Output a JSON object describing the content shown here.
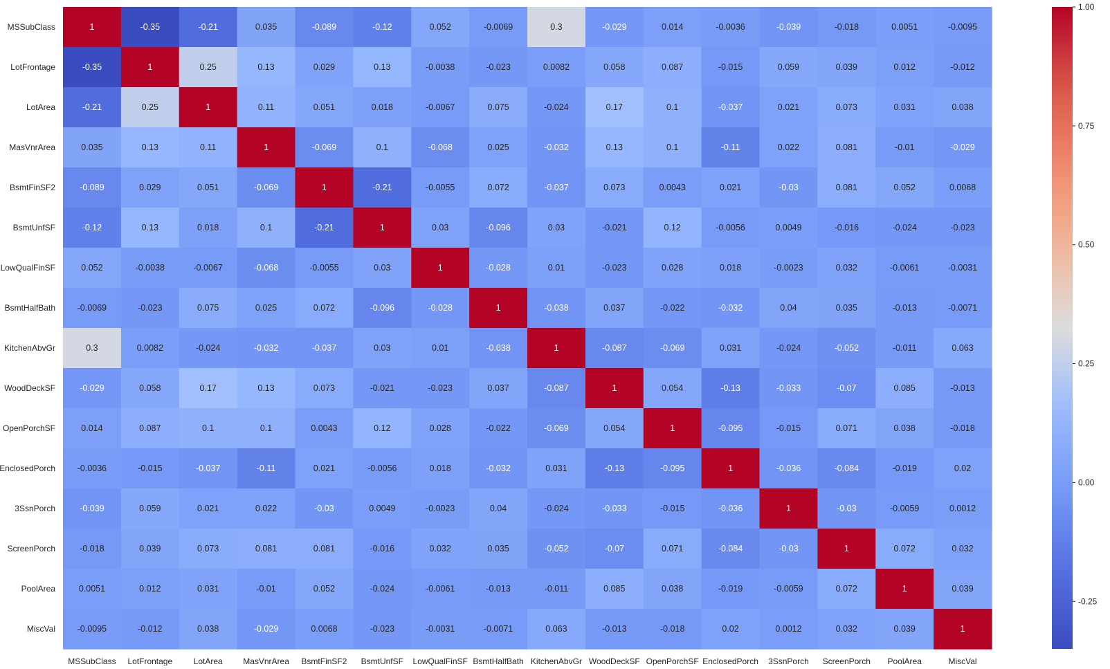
{
  "chart_data": {
    "type": "heatmap",
    "title": "",
    "xlabel": "",
    "ylabel": "",
    "colormap": "coolwarm",
    "annotated": true,
    "vmin": -0.35,
    "vmax": 1.0,
    "grid": false,
    "colorbar": {
      "placement": "right",
      "ticks": [
        -0.25,
        0.0,
        0.25,
        0.5,
        0.75,
        1.0
      ],
      "tick_labels": [
        "-0.25",
        "0.00",
        "0.25",
        "0.50",
        "0.75",
        "1.00"
      ]
    },
    "labels": [
      "MSSubClass",
      "LotFrontage",
      "LotArea",
      "MasVnrArea",
      "BsmtFinSF2",
      "BsmtUnfSF",
      "LowQualFinSF",
      "BsmtHalfBath",
      "KitchenAbvGr",
      "WoodDeckSF",
      "OpenPorchSF",
      "EnclosedPorch",
      "3SsnPorch",
      "ScreenPorch",
      "PoolArea",
      "MiscVal"
    ],
    "annotations": [
      [
        "1",
        "-0.35",
        "-0.21",
        "0.035",
        "-0.089",
        "-0.12",
        "0.052",
        "-0.0069",
        "0.3",
        "-0.029",
        "0.014",
        "-0.0036",
        "-0.039",
        "-0.018",
        "0.0051",
        "-0.0095"
      ],
      [
        "-0.35",
        "1",
        "0.25",
        "0.13",
        "0.029",
        "0.13",
        "-0.0038",
        "-0.023",
        "0.0082",
        "0.058",
        "0.087",
        "-0.015",
        "0.059",
        "0.039",
        "0.012",
        "-0.012"
      ],
      [
        "-0.21",
        "0.25",
        "1",
        "0.11",
        "0.051",
        "0.018",
        "-0.0067",
        "0.075",
        "-0.024",
        "0.17",
        "0.1",
        "-0.037",
        "0.021",
        "0.073",
        "0.031",
        "0.038"
      ],
      [
        "0.035",
        "0.13",
        "0.11",
        "1",
        "-0.069",
        "0.1",
        "-0.068",
        "0.025",
        "-0.032",
        "0.13",
        "0.1",
        "-0.11",
        "0.022",
        "0.081",
        "-0.01",
        "-0.029"
      ],
      [
        "-0.089",
        "0.029",
        "0.051",
        "-0.069",
        "1",
        "-0.21",
        "-0.0055",
        "0.072",
        "-0.037",
        "0.073",
        "0.0043",
        "0.021",
        "-0.03",
        "0.081",
        "0.052",
        "0.0068"
      ],
      [
        "-0.12",
        "0.13",
        "0.018",
        "0.1",
        "-0.21",
        "1",
        "0.03",
        "-0.096",
        "0.03",
        "-0.021",
        "0.12",
        "-0.0056",
        "0.0049",
        "-0.016",
        "-0.024",
        "-0.023"
      ],
      [
        "0.052",
        "-0.0038",
        "-0.0067",
        "-0.068",
        "-0.0055",
        "0.03",
        "1",
        "-0.028",
        "0.01",
        "-0.023",
        "0.028",
        "0.018",
        "-0.0023",
        "0.032",
        "-0.0061",
        "-0.0031"
      ],
      [
        "-0.0069",
        "-0.023",
        "0.075",
        "0.025",
        "0.072",
        "-0.096",
        "-0.028",
        "1",
        "-0.038",
        "0.037",
        "-0.022",
        "-0.032",
        "0.04",
        "0.035",
        "-0.013",
        "-0.0071"
      ],
      [
        "0.3",
        "0.0082",
        "-0.024",
        "-0.032",
        "-0.037",
        "0.03",
        "0.01",
        "-0.038",
        "1",
        "-0.087",
        "-0.069",
        "0.031",
        "-0.024",
        "-0.052",
        "-0.011",
        "0.063"
      ],
      [
        "-0.029",
        "0.058",
        "0.17",
        "0.13",
        "0.073",
        "-0.021",
        "-0.023",
        "0.037",
        "-0.087",
        "1",
        "0.054",
        "-0.13",
        "-0.033",
        "-0.07",
        "0.085",
        "-0.013"
      ],
      [
        "0.014",
        "0.087",
        "0.1",
        "0.1",
        "0.0043",
        "0.12",
        "0.028",
        "-0.022",
        "-0.069",
        "0.054",
        "1",
        "-0.095",
        "-0.015",
        "0.071",
        "0.038",
        "-0.018"
      ],
      [
        "-0.0036",
        "-0.015",
        "-0.037",
        "-0.11",
        "0.021",
        "-0.0056",
        "0.018",
        "-0.032",
        "0.031",
        "-0.13",
        "-0.095",
        "1",
        "-0.036",
        "-0.084",
        "-0.019",
        "0.02"
      ],
      [
        "-0.039",
        "0.059",
        "0.021",
        "0.022",
        "-0.03",
        "0.0049",
        "-0.0023",
        "0.04",
        "-0.024",
        "-0.033",
        "-0.015",
        "-0.036",
        "1",
        "-0.03",
        "-0.0059",
        "0.0012"
      ],
      [
        "-0.018",
        "0.039",
        "0.073",
        "0.081",
        "0.081",
        "-0.016",
        "0.032",
        "0.035",
        "-0.052",
        "-0.07",
        "0.071",
        "-0.084",
        "-0.03",
        "1",
        "0.072",
        "0.032"
      ],
      [
        "0.0051",
        "0.012",
        "0.031",
        "-0.01",
        "0.052",
        "-0.024",
        "-0.0061",
        "-0.013",
        "-0.011",
        "0.085",
        "0.038",
        "-0.019",
        "-0.0059",
        "0.072",
        "1",
        "0.039"
      ],
      [
        "-0.0095",
        "-0.012",
        "0.038",
        "-0.029",
        "0.0068",
        "-0.023",
        "-0.0031",
        "-0.0071",
        "0.063",
        "-0.013",
        "-0.018",
        "0.02",
        "0.0012",
        "0.032",
        "0.039",
        "1"
      ]
    ]
  }
}
